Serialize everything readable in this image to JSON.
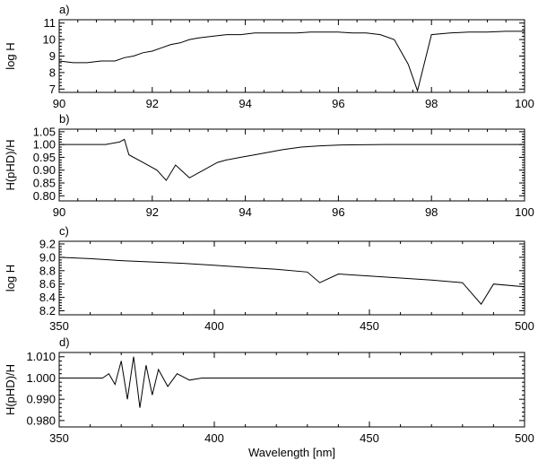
{
  "chart_data": [
    {
      "panel_label": "a)",
      "type": "line",
      "ylabel": "log H",
      "xlabel": "",
      "xlim": [
        90,
        100
      ],
      "ylim": [
        6.8,
        11.2
      ],
      "x_ticks": [
        90,
        92,
        94,
        96,
        98,
        100
      ],
      "x_tick_labels": [
        "90",
        "92",
        "94",
        "96",
        "98",
        "100"
      ],
      "y_ticks": [
        7,
        8,
        9,
        10,
        11
      ],
      "y_tick_labels": [
        "7",
        "8",
        "9",
        "10",
        "11"
      ],
      "grid": false,
      "series": [
        {
          "x": [
            90.0,
            90.3,
            90.6,
            90.9,
            91.2,
            91.4,
            91.6,
            91.8,
            92.0,
            92.2,
            92.4,
            92.6,
            92.8,
            93.0,
            93.3,
            93.6,
            93.9,
            94.2,
            94.5,
            94.8,
            95.1,
            95.4,
            95.7,
            96.0,
            96.3,
            96.6,
            96.9,
            97.2,
            97.5,
            97.7,
            98.0,
            98.4,
            98.8,
            99.2,
            99.6,
            100.0
          ],
          "y": [
            8.7,
            8.6,
            8.6,
            8.7,
            8.7,
            8.9,
            9.0,
            9.2,
            9.3,
            9.5,
            9.7,
            9.8,
            10.0,
            10.1,
            10.2,
            10.3,
            10.3,
            10.4,
            10.4,
            10.4,
            10.4,
            10.45,
            10.45,
            10.45,
            10.4,
            10.4,
            10.3,
            10.0,
            8.5,
            6.9,
            10.3,
            10.4,
            10.45,
            10.45,
            10.5,
            10.5
          ]
        }
      ]
    },
    {
      "panel_label": "b)",
      "type": "line",
      "ylabel": "H(pHD)/H",
      "xlabel": "",
      "xlim": [
        90,
        100
      ],
      "ylim": [
        0.78,
        1.06
      ],
      "x_ticks": [
        90,
        92,
        94,
        96,
        98,
        100
      ],
      "x_tick_labels": [
        "90",
        "92",
        "94",
        "96",
        "98",
        "100"
      ],
      "y_ticks": [
        0.8,
        0.85,
        0.9,
        0.95,
        1.0,
        1.05
      ],
      "y_tick_labels": [
        "0.80",
        "0.85",
        "0.90",
        "0.95",
        "1.00",
        "1.05"
      ],
      "grid": false,
      "series": [
        {
          "x": [
            90.0,
            91.0,
            91.3,
            91.4,
            91.5,
            91.8,
            92.1,
            92.3,
            92.5,
            92.8,
            93.1,
            93.4,
            93.6,
            93.9,
            94.2,
            94.5,
            94.8,
            95.2,
            95.6,
            96.0,
            97.0,
            98.0,
            100.0
          ],
          "y": [
            1.0,
            1.0,
            1.01,
            1.02,
            0.96,
            0.93,
            0.9,
            0.86,
            0.92,
            0.87,
            0.9,
            0.93,
            0.94,
            0.95,
            0.96,
            0.97,
            0.98,
            0.99,
            0.995,
            0.998,
            1.0,
            1.0,
            1.0
          ]
        }
      ]
    },
    {
      "panel_label": "c)",
      "type": "line",
      "ylabel": "log H",
      "xlabel": "",
      "xlim": [
        350,
        500
      ],
      "ylim": [
        8.14,
        9.24
      ],
      "x_ticks": [
        350,
        400,
        450,
        500
      ],
      "x_tick_labels": [
        "350",
        "400",
        "450",
        "500"
      ],
      "y_ticks": [
        8.2,
        8.4,
        8.6,
        8.8,
        9.0,
        9.2
      ],
      "y_tick_labels": [
        "8.2",
        "8.4",
        "8.6",
        "8.8",
        "9.0",
        "9.2"
      ],
      "grid": false,
      "series": [
        {
          "x": [
            350,
            360,
            370,
            380,
            390,
            400,
            410,
            420,
            430,
            434,
            440,
            450,
            460,
            470,
            480,
            486,
            490,
            500
          ],
          "y": [
            9.0,
            8.98,
            8.95,
            8.93,
            8.91,
            8.88,
            8.85,
            8.82,
            8.78,
            8.62,
            8.75,
            8.72,
            8.69,
            8.66,
            8.62,
            8.3,
            8.6,
            8.56
          ]
        }
      ]
    },
    {
      "panel_label": "d)",
      "type": "line",
      "ylabel": "H(pHD)/H",
      "xlabel": "Wavelength [nm]",
      "xlim": [
        350,
        500
      ],
      "ylim": [
        0.977,
        1.012
      ],
      "x_ticks": [
        350,
        400,
        450,
        500
      ],
      "x_tick_labels": [
        "350",
        "400",
        "450",
        "500"
      ],
      "y_ticks": [
        0.98,
        0.99,
        1.0,
        1.01
      ],
      "y_tick_labels": [
        "0.980",
        "0.990",
        "1.000",
        "1.010"
      ],
      "grid": false,
      "series": [
        {
          "x": [
            350,
            364,
            366,
            368,
            370,
            372,
            374,
            376,
            378,
            380,
            382,
            385,
            388,
            392,
            396,
            400,
            500
          ],
          "y": [
            1.0,
            1.0,
            1.002,
            0.997,
            1.008,
            0.99,
            1.01,
            0.986,
            1.006,
            0.992,
            1.004,
            0.996,
            1.002,
            0.999,
            1.0,
            1.0,
            1.0
          ]
        }
      ]
    }
  ]
}
